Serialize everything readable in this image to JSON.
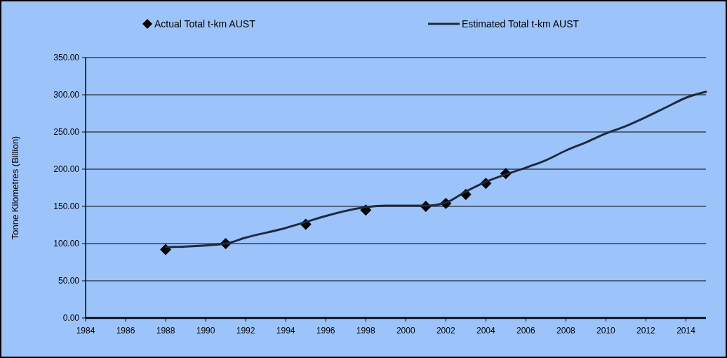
{
  "chart_data": {
    "type": "line",
    "ylabel": "Tonne Kilometres (Billion)",
    "xlim": [
      1984,
      2015
    ],
    "xticks": [
      1984,
      1986,
      1988,
      1990,
      1992,
      1994,
      1996,
      1998,
      2000,
      2002,
      2004,
      2006,
      2008,
      2010,
      2012,
      2014
    ],
    "ylim": [
      0,
      350
    ],
    "yticks": [
      {
        "value": 0,
        "label": "0.00"
      },
      {
        "value": 50,
        "label": "50.00"
      },
      {
        "value": 100,
        "label": "100.00"
      },
      {
        "value": 150,
        "label": "150.00"
      },
      {
        "value": 200,
        "label": "200.00"
      },
      {
        "value": 250,
        "label": "250.00"
      },
      {
        "value": 300,
        "label": "300.00"
      },
      {
        "value": 350,
        "label": "350.00"
      }
    ],
    "grid": "y",
    "legend": "top",
    "series": [
      {
        "name": "Actual Total t-km AUST",
        "type": "scatter",
        "marker": "diamond",
        "color": "#000000",
        "x": [
          1988,
          1991,
          1995,
          1998,
          2001,
          2002,
          2003,
          2004,
          2005
        ],
        "values": [
          92,
          100,
          126,
          145,
          150,
          154,
          166,
          181,
          194
        ]
      },
      {
        "name": "Estimated Total t-km AUST",
        "marker": "none",
        "color": "#1f2a3c",
        "x": [
          1988,
          1991,
          1992,
          1994,
          1995,
          1996,
          1998,
          1999,
          2001,
          2002,
          2003,
          2004,
          2005,
          2006,
          2007,
          2008,
          2009,
          2010,
          2011,
          2012,
          2013,
          2014,
          2015
        ],
        "values": [
          95,
          100,
          108,
          121,
          129,
          137,
          149,
          151,
          151,
          155,
          170,
          183,
          193,
          202,
          212,
          225,
          236,
          248,
          258,
          270,
          283,
          296,
          304
        ]
      }
    ]
  }
}
